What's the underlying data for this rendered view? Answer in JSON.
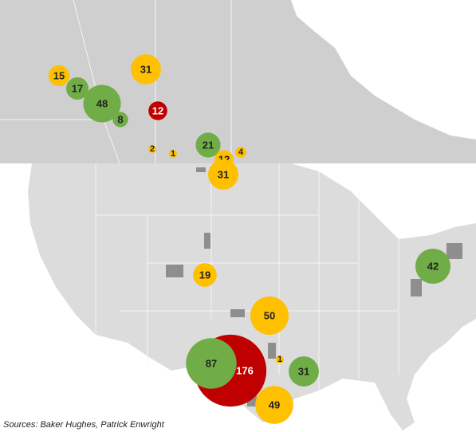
{
  "source": "Sources: Baker Hughes, Patrick Enwright",
  "bubbles": [
    {
      "value": 15,
      "color": "#ffc000"
    },
    {
      "value": 31,
      "color": "#ffc000"
    },
    {
      "value": 17,
      "color": "#70ad47"
    },
    {
      "value": 48,
      "color": "#70ad47"
    },
    {
      "value": 8,
      "color": "#70ad47"
    },
    {
      "value": 12,
      "color": "#c00000"
    },
    {
      "value": 2,
      "color": "#ffc000"
    },
    {
      "value": 1,
      "color": "#ffc000"
    },
    {
      "value": 21,
      "color": "#70ad47"
    },
    {
      "value": 4,
      "color": "#ffc000"
    },
    {
      "value": 12,
      "color": "#ffc000"
    },
    {
      "value": 31,
      "color": "#ffc000"
    },
    {
      "value": 19,
      "color": "#ffc000"
    },
    {
      "value": 42,
      "color": "#70ad47"
    },
    {
      "value": 50,
      "color": "#ffc000"
    },
    {
      "value": 1,
      "color": "#ffc000"
    },
    {
      "value": 176,
      "color": "#c00000"
    },
    {
      "value": 87,
      "color": "#70ad47"
    },
    {
      "value": 31,
      "color": "#70ad47"
    },
    {
      "value": 49,
      "color": "#ffc000"
    }
  ]
}
